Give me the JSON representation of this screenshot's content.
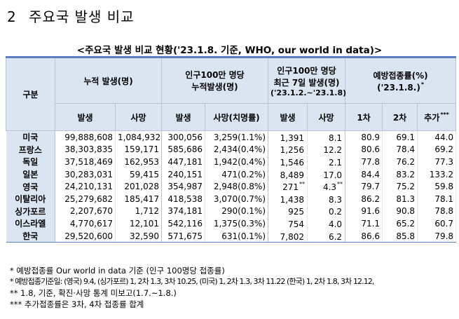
{
  "heading": {
    "number": "2",
    "title": "주요국 발생 비교"
  },
  "subtitle": "<주요국 발생 비교 현황('23.1.8. 기준, WHO, our world in data)>",
  "header": {
    "category": "구분",
    "cumulative": "누적 발생(명)",
    "per_million_cumulative_1": "인구100만 명당",
    "per_million_cumulative_2": "누적발생(명)",
    "per_million_recent_1": "인구100만 명당",
    "per_million_recent_2": "최근 7일 발생(명)",
    "per_million_recent_3": "('23.1.2.~'23.1.8)",
    "vaccination_1": "예방접종률(%)",
    "vaccination_2": "('23.1.8.)",
    "vaccination_mark": "*",
    "sub": {
      "cases": "발생",
      "deaths": "사망",
      "pm_cases": "발생",
      "pm_deaths": "사망(치명률)",
      "recent_cases": "발생",
      "recent_deaths": "사망",
      "dose1": "1차",
      "dose2": "2차",
      "booster": "추가",
      "booster_mark": "***"
    }
  },
  "rows": [
    {
      "country": "미국",
      "cases": "99,888,608",
      "deaths": "1,084,932",
      "pm_cases": "300,056",
      "pm_deaths": "3,259(1.1%)",
      "recent_cases": "1,391",
      "recent_cases_mark": "",
      "recent_deaths": "8.1",
      "recent_deaths_mark": "",
      "dose1": "80.9",
      "dose2": "69.1",
      "booster": "44.0"
    },
    {
      "country": "프랑스",
      "cases": "38,303,835",
      "deaths": "159,171",
      "pm_cases": "585,686",
      "pm_deaths": "2,434(0.4%)",
      "recent_cases": "1,256",
      "recent_cases_mark": "",
      "recent_deaths": "12.2",
      "recent_deaths_mark": "",
      "dose1": "80.6",
      "dose2": "78.4",
      "booster": "69.2"
    },
    {
      "country": "독일",
      "cases": "37,518,469",
      "deaths": "162,953",
      "pm_cases": "447,181",
      "pm_deaths": "1,942(0.4%)",
      "recent_cases": "1,546",
      "recent_cases_mark": "",
      "recent_deaths": "2.1",
      "recent_deaths_mark": "",
      "dose1": "77.8",
      "dose2": "76.2",
      "booster": "77.3"
    },
    {
      "country": "일본",
      "cases": "30,283,031",
      "deaths": "59,415",
      "pm_cases": "240,151",
      "pm_deaths": "471(0.2%)",
      "recent_cases": "8,489",
      "recent_cases_mark": "",
      "recent_deaths": "17.0",
      "recent_deaths_mark": "",
      "dose1": "84.4",
      "dose2": "83.2",
      "booster": "133.2"
    },
    {
      "country": "영국",
      "cases": "24,210,131",
      "deaths": "201,028",
      "pm_cases": "354,987",
      "pm_deaths": "2,948(0.8%)",
      "recent_cases": "271",
      "recent_cases_mark": "**",
      "recent_deaths": "4.3",
      "recent_deaths_mark": "**",
      "dose1": "79.7",
      "dose2": "75.2",
      "booster": "59.8"
    },
    {
      "country": "이탈리아",
      "cases": "25,279,682",
      "deaths": "185,417",
      "pm_cases": "418,538",
      "pm_deaths": "3,070(0.7%)",
      "recent_cases": "1,438",
      "recent_cases_mark": "",
      "recent_deaths": "8.3",
      "recent_deaths_mark": "",
      "dose1": "86.2",
      "dose2": "81.3",
      "booster": "78.1"
    },
    {
      "country": "싱가포르",
      "cases": "2,207,670",
      "deaths": "1,712",
      "pm_cases": "374,181",
      "pm_deaths": "290(0.1%)",
      "recent_cases": "925",
      "recent_cases_mark": "",
      "recent_deaths": "0.2",
      "recent_deaths_mark": "",
      "dose1": "91.6",
      "dose2": "90.8",
      "booster": "78.8"
    },
    {
      "country": "이스라엘",
      "cases": "4,770,617",
      "deaths": "12,101",
      "pm_cases": "542,116",
      "pm_deaths": "1,375(0.3%)",
      "recent_cases": "754",
      "recent_cases_mark": "",
      "recent_deaths": "4.0",
      "recent_deaths_mark": "",
      "dose1": "71.1",
      "dose2": "65.2",
      "booster": "60.7"
    },
    {
      "country": "한국",
      "cases": "29,520,600",
      "deaths": "32,590",
      "pm_cases": "571,675",
      "pm_deaths": "631(0.1%)",
      "recent_cases": "7,802",
      "recent_cases_mark": "",
      "recent_deaths": "6.2",
      "recent_deaths_mark": "",
      "dose1": "86.6",
      "dose2": "85.8",
      "booster": "79.8"
    }
  ],
  "notes": [
    "* 예방접종률 Our world in data 기준 (인구 100명당 접종률)",
    "* 예방접종기준일: (영국) 9.4, (싱가포르) 1, 2차 1.3, 3차 10.25, (미국) 1, 2차 1.3, 3차 11.22 (한국) 1, 2차 1.8, 3차 12.12,",
    "** 1.8, 기준, 확진·사망 통계 미보고(1.7.~1.8.)",
    "*** 추가접종률은 3차, 4차 접종률 합계"
  ]
}
